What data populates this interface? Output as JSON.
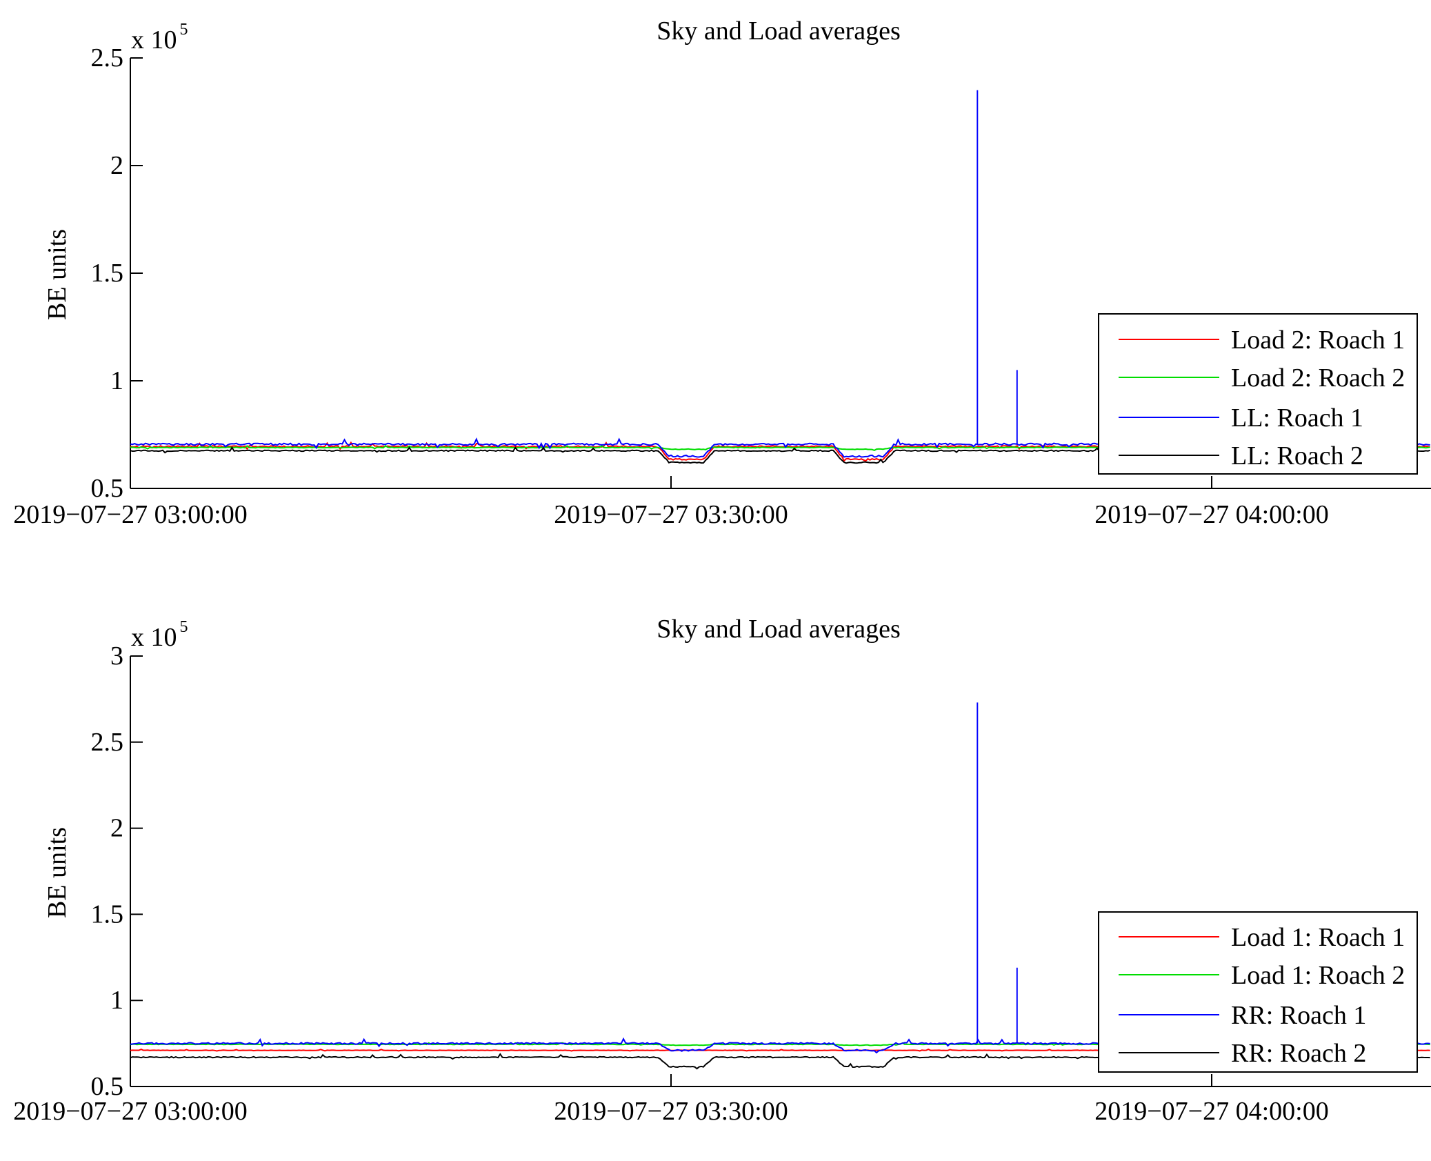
{
  "chart_data": [
    {
      "type": "line",
      "title": "Sky and Load averages",
      "ylabel": "BE units",
      "xlabel": "",
      "y_multiplier_label": "x 10",
      "y_multiplier_exponent": "5",
      "ylim": [
        0.5,
        2.5
      ],
      "yticks": [
        0.5,
        1,
        1.5,
        2,
        2.5
      ],
      "ytick_labels": [
        "0.5",
        "1",
        "1.5",
        "2",
        "2.5"
      ],
      "xlim_minutes": [
        0,
        70
      ],
      "xticks_minutes": [
        0,
        30,
        60
      ],
      "xtick_labels": [
        "2019−07−27 03:00:00",
        "2019−07−27 03:30:00",
        "2019−07−27 04:00:00"
      ],
      "legend_position": "bottom-right",
      "series": [
        {
          "name": "Load 2: Roach 1",
          "color": "#ff0000",
          "base": 0.695,
          "dip": 0.06,
          "noise": 0.006,
          "spikes": []
        },
        {
          "name": "Load 2: Roach 2",
          "color": "#00dd00",
          "base": 0.69,
          "dip": 0.008,
          "noise": 0.003,
          "spikes": []
        },
        {
          "name": "LL: Roach 1",
          "color": "#0000ff",
          "base": 0.705,
          "dip": 0.055,
          "noise": 0.009,
          "spikes": [
            [
              47,
              2.35
            ],
            [
              49.2,
              1.05
            ]
          ]
        },
        {
          "name": "LL: Roach 2",
          "color": "#000000",
          "base": 0.675,
          "dip": 0.055,
          "noise": 0.005,
          "spikes": []
        }
      ]
    },
    {
      "type": "line",
      "title": "Sky and Load averages",
      "ylabel": "BE units",
      "xlabel": "",
      "y_multiplier_label": "x 10",
      "y_multiplier_exponent": "5",
      "ylim": [
        0.5,
        3
      ],
      "yticks": [
        0.5,
        1,
        1.5,
        2,
        2.5,
        3
      ],
      "ytick_labels": [
        "0.5",
        "1",
        "1.5",
        "2",
        "2.5",
        "3"
      ],
      "xlim_minutes": [
        0,
        70
      ],
      "xticks_minutes": [
        0,
        30,
        60
      ],
      "xtick_labels": [
        "2019−07−27 03:00:00",
        "2019−07−27 03:30:00",
        "2019−07−27 04:00:00"
      ],
      "legend_position": "bottom-right",
      "series": [
        {
          "name": "Load 1: Roach 1",
          "color": "#ff0000",
          "base": 0.71,
          "dip": 0.0,
          "noise": 0.002,
          "spikes": []
        },
        {
          "name": "Load 1: Roach 2",
          "color": "#00dd00",
          "base": 0.745,
          "dip": 0.005,
          "noise": 0.003,
          "spikes": []
        },
        {
          "name": "RR: Roach 1",
          "color": "#0000ff",
          "base": 0.75,
          "dip": 0.04,
          "noise": 0.009,
          "spikes": [
            [
              47,
              2.73
            ],
            [
              49.2,
              1.19
            ]
          ]
        },
        {
          "name": "RR: Roach 2",
          "color": "#000000",
          "base": 0.67,
          "dip": 0.055,
          "noise": 0.006,
          "spikes": []
        }
      ]
    }
  ]
}
